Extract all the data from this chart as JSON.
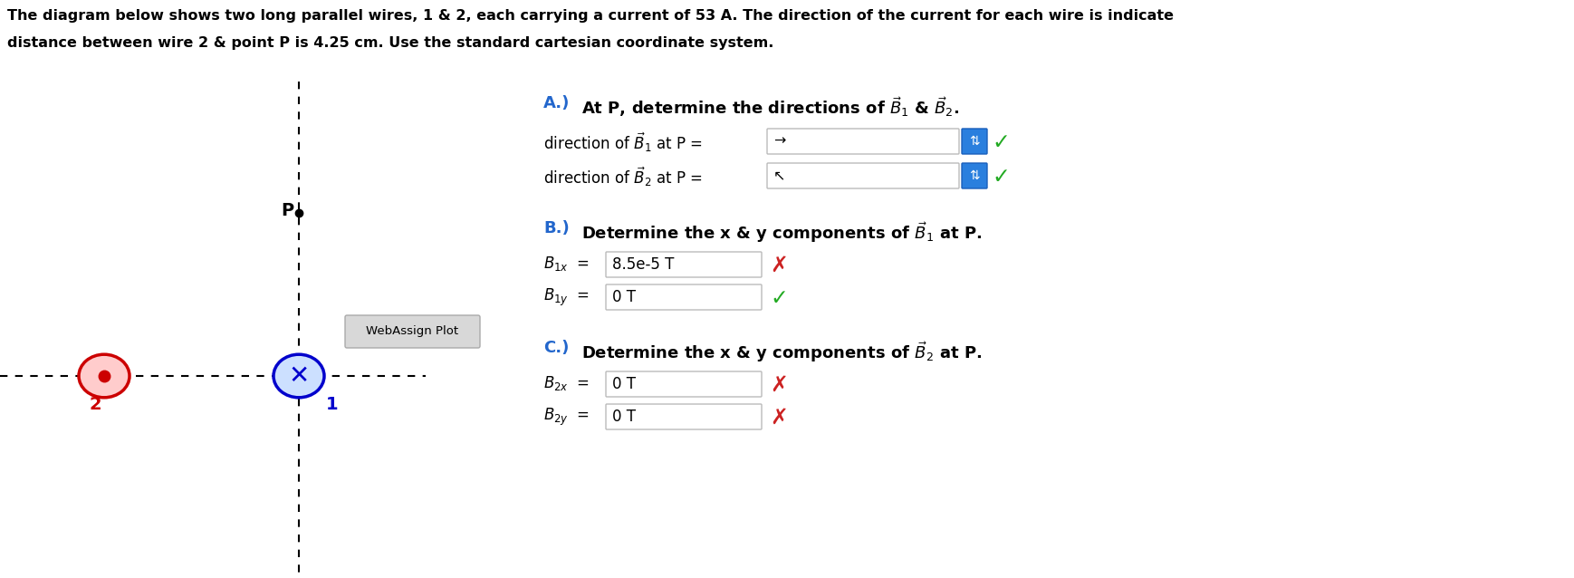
{
  "title_line1": "The diagram below shows two long parallel wires, 1 & 2, each carrying a current of 53 A. The direction of the current for each wire is indicate",
  "title_line2": "distance between wire 2 & point P is 4.25 cm. Use the standard cartesian coordinate system.",
  "wire1_color": "#0000cc",
  "wire2_color": "#cc0000",
  "wire2_fill": "#ffcccc",
  "wire1_fill": "#cce0ff",
  "blue": "#2266cc",
  "black": "#000000",
  "green": "#22aa22",
  "red_x": "#cc2222",
  "bg": "#ffffff",
  "gray_box": "#d0d0d0",
  "input_border": "#aaaaaa",
  "spinner_color": "#2a7fde",
  "webassign_label": "WebAssign Plot",
  "dir_B1_answer": "→",
  "dir_B2_answer": "↖",
  "B1x_value": "8.5e-5 T",
  "B1y_value": "0 T",
  "B2x_value": "0 T",
  "B2y_value": "0 T"
}
